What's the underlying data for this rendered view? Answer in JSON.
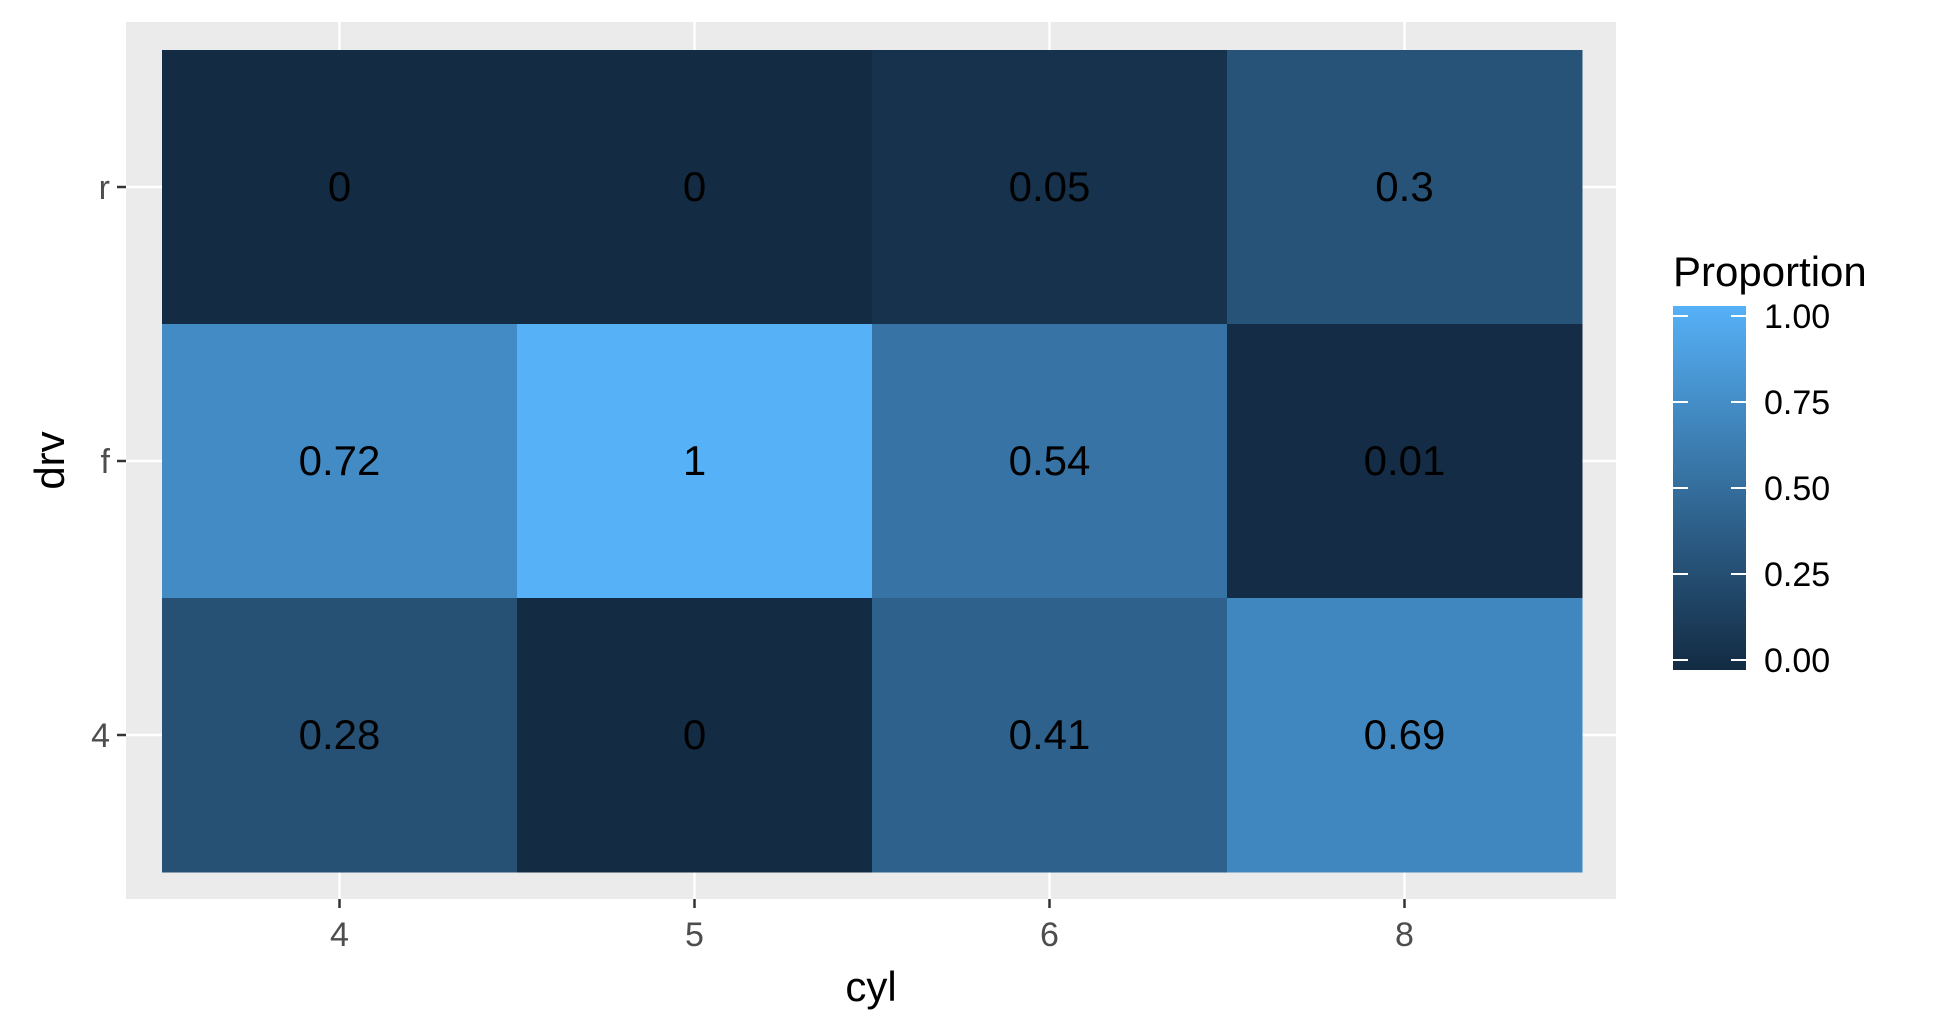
{
  "chart_data": {
    "type": "heatmap",
    "title": "",
    "xlabel": "cyl",
    "ylabel": "drv",
    "x_categories": [
      "4",
      "5",
      "6",
      "8"
    ],
    "y_categories": [
      "4",
      "f",
      "r"
    ],
    "cells": [
      {
        "x": "4",
        "y": "r",
        "value": 0,
        "label": "0"
      },
      {
        "x": "5",
        "y": "r",
        "value": 0,
        "label": "0"
      },
      {
        "x": "6",
        "y": "r",
        "value": 0.05,
        "label": "0.05"
      },
      {
        "x": "8",
        "y": "r",
        "value": 0.3,
        "label": "0.3"
      },
      {
        "x": "4",
        "y": "f",
        "value": 0.72,
        "label": "0.72"
      },
      {
        "x": "5",
        "y": "f",
        "value": 1,
        "label": "1"
      },
      {
        "x": "6",
        "y": "f",
        "value": 0.54,
        "label": "0.54"
      },
      {
        "x": "8",
        "y": "f",
        "value": 0.01,
        "label": "0.01"
      },
      {
        "x": "4",
        "y": "4",
        "value": 0.28,
        "label": "0.28"
      },
      {
        "x": "5",
        "y": "4",
        "value": 0,
        "label": "0"
      },
      {
        "x": "6",
        "y": "4",
        "value": 0.41,
        "label": "0.41"
      },
      {
        "x": "8",
        "y": "4",
        "value": 0.69,
        "label": "0.69"
      }
    ],
    "legend": {
      "title": "Proportion",
      "placement": "right",
      "breaks": [
        {
          "value": 0,
          "label": "0.00"
        },
        {
          "value": 0.25,
          "label": "0.25"
        },
        {
          "value": 0.5,
          "label": "0.50"
        },
        {
          "value": 0.75,
          "label": "0.75"
        },
        {
          "value": 1,
          "label": "1.00"
        }
      ],
      "range": [
        0,
        1
      ]
    },
    "colors": {
      "low": "#132B43",
      "high": "#56B1F7",
      "panel_background": "#EBEBEB",
      "grid": "#FFFFFF",
      "cell_text": "#000000",
      "axis_text": "#4D4D4D",
      "title_text": "#000000"
    },
    "grid": true
  }
}
